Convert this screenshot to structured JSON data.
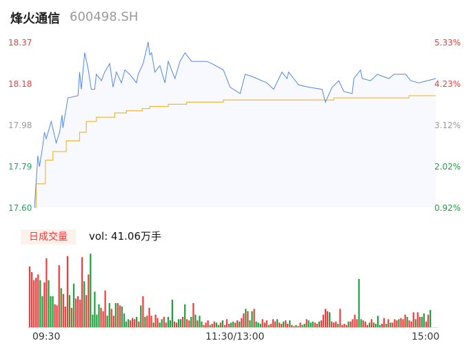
{
  "header": {
    "name": "烽火通信",
    "code": "600498.SH"
  },
  "volume_panel": {
    "badge": "日成交量",
    "vol_text": "vol: 41.06万手"
  },
  "colors": {
    "price_line": "#4f86f0",
    "avg_line": "#f5b731",
    "up": "#f03a3a",
    "down": "#18a33a",
    "flat": "#999999",
    "fill": "#f7f9fe"
  },
  "chart_data": {
    "type": "line",
    "y_left_ticks": [
      "18.37",
      "18.18",
      "17.98",
      "17.79",
      "17.60"
    ],
    "y_right_ticks": [
      "5.33%",
      "4.23%",
      "3.12%",
      "2.02%",
      "0.92%"
    ],
    "x_ticks": [
      "09:30",
      "11:30/13:00",
      "15:00"
    ],
    "ylim": [
      17.6,
      18.37
    ],
    "x_minutes_range": [
      0,
      240
    ],
    "series": [
      {
        "key": "price",
        "points": [
          [
            0,
            17.6
          ],
          [
            2,
            17.84
          ],
          [
            3,
            17.79
          ],
          [
            5,
            17.89
          ],
          [
            6,
            17.95
          ],
          [
            7,
            17.92
          ],
          [
            10,
            18.0
          ],
          [
            13,
            17.9
          ],
          [
            15,
            17.95
          ],
          [
            16.5,
            18.03
          ],
          [
            17,
            17.97
          ],
          [
            20,
            18.11
          ],
          [
            26,
            18.12
          ],
          [
            27,
            18.23
          ],
          [
            28,
            18.15
          ],
          [
            30,
            18.32
          ],
          [
            32,
            18.25
          ],
          [
            34,
            18.15
          ],
          [
            36,
            18.15
          ],
          [
            37,
            18.22
          ],
          [
            40,
            18.19
          ],
          [
            42,
            18.23
          ],
          [
            45,
            18.27
          ],
          [
            47,
            18.16
          ],
          [
            49,
            18.23
          ],
          [
            52,
            18.18
          ],
          [
            54,
            18.24
          ],
          [
            57,
            18.22
          ],
          [
            61,
            18.18
          ],
          [
            62,
            18.22
          ],
          [
            65,
            18.27
          ],
          [
            68,
            18.37
          ],
          [
            69,
            18.31
          ],
          [
            70,
            18.32
          ],
          [
            72,
            18.23
          ],
          [
            75,
            18.26
          ],
          [
            78,
            18.18
          ],
          [
            80,
            18.28
          ],
          [
            84,
            18.2
          ],
          [
            87,
            18.28
          ],
          [
            90,
            18.32
          ],
          [
            94,
            18.28
          ],
          [
            103,
            18.28
          ],
          [
            106,
            18.27
          ],
          [
            113,
            18.24
          ],
          [
            117,
            18.16
          ],
          [
            123,
            18.13
          ],
          [
            126,
            18.22
          ],
          [
            130,
            18.21
          ],
          [
            133,
            18.2
          ],
          [
            139,
            18.18
          ],
          [
            143,
            18.15
          ],
          [
            148,
            18.23
          ],
          [
            151,
            18.2
          ],
          [
            152,
            18.23
          ],
          [
            158,
            18.17
          ],
          [
            164,
            18.16
          ],
          [
            172,
            18.15
          ],
          [
            174,
            18.09
          ],
          [
            178,
            18.16
          ],
          [
            182,
            18.19
          ],
          [
            185,
            18.14
          ],
          [
            190,
            18.13
          ],
          [
            191,
            18.2
          ],
          [
            195,
            18.24
          ],
          [
            196,
            18.2
          ],
          [
            201,
            18.19
          ],
          [
            205,
            18.22
          ],
          [
            212,
            18.2
          ],
          [
            215,
            18.22
          ],
          [
            222,
            18.22
          ],
          [
            225,
            18.19
          ],
          [
            230,
            18.18
          ],
          [
            240,
            18.2
          ]
        ]
      },
      {
        "key": "average",
        "steps": [
          [
            0,
            17.6
          ],
          [
            1,
            17.71
          ],
          [
            6.5,
            17.82
          ],
          [
            11,
            17.86
          ],
          [
            19,
            17.91
          ],
          [
            27,
            17.95
          ],
          [
            31,
            18.0
          ],
          [
            37,
            18.02
          ],
          [
            48,
            18.04
          ],
          [
            55,
            18.05
          ],
          [
            64.5,
            18.06
          ],
          [
            69,
            18.07
          ],
          [
            80,
            18.08
          ],
          [
            91,
            18.09
          ],
          [
            113,
            18.1
          ],
          [
            179,
            18.11
          ],
          [
            224,
            18.12
          ],
          [
            240,
            18.12
          ]
        ]
      }
    ],
    "volume": {
      "unit": "relative",
      "values": [
        265,
        240,
        205,
        215,
        230,
        205,
        135,
        195,
        300,
        205,
        135,
        135,
        100,
        95,
        270,
        170,
        145,
        90,
        310,
        140,
        85,
        190,
        125,
        135,
        120,
        305,
        200,
        140,
        230,
        320,
        55,
        155,
        55,
        100,
        85,
        70,
        160,
        50,
        105,
        80,
        50,
        105,
        105,
        95,
        90,
        60,
        25,
        35,
        30,
        40,
        35,
        45,
        25,
        95,
        135,
        45,
        50,
        85,
        50,
        20,
        55,
        40,
        20,
        35,
        45,
        20,
        45,
        30,
        120,
        25,
        20,
        35,
        35,
        45,
        100,
        35,
        30,
        45,
        105,
        55,
        30,
        50,
        25,
        10,
        20,
        30,
        10,
        15,
        25,
        20,
        10,
        20,
        30,
        10,
        35,
        15,
        20,
        25,
        20,
        30,
        25,
        40,
        60,
        80,
        70,
        30,
        70,
        80,
        25,
        20,
        15,
        35,
        20,
        30,
        10,
        15,
        35,
        25,
        35,
        20,
        15,
        25,
        30,
        15,
        30,
        10,
        5,
        10,
        5,
        20,
        10,
        15,
        35,
        30,
        20,
        25,
        20,
        15,
        25,
        30,
        55,
        80,
        70,
        65,
        25,
        20,
        25,
        15,
        80,
        10,
        15,
        10,
        25,
        25,
        35,
        55,
        35,
        210,
        35,
        30,
        25,
        10,
        20,
        35,
        20,
        15,
        50,
        10,
        15,
        40,
        15,
        35,
        20,
        20,
        35,
        30,
        35,
        40,
        35,
        55,
        45,
        30,
        25,
        65,
        35,
        65,
        45,
        45,
        60,
        25,
        55,
        75
      ],
      "colors": "rrrrrggrrgggrrrgrrrgrgrrrrgrrgggggrrrgg rrgrrggggrrrgrgrgrrrgrrggrrgggrrggrgrrgrgrggrrrgrrggrgrrrggrrgrrgrggrgggrrrgrrrgrrgrrgrrgrrggrgggrrgrrrrgrrrgrrrrgrrrrggrrrgrrgggrrgrgrrrgrrrgrrrgrrggrrgr"
    }
  }
}
